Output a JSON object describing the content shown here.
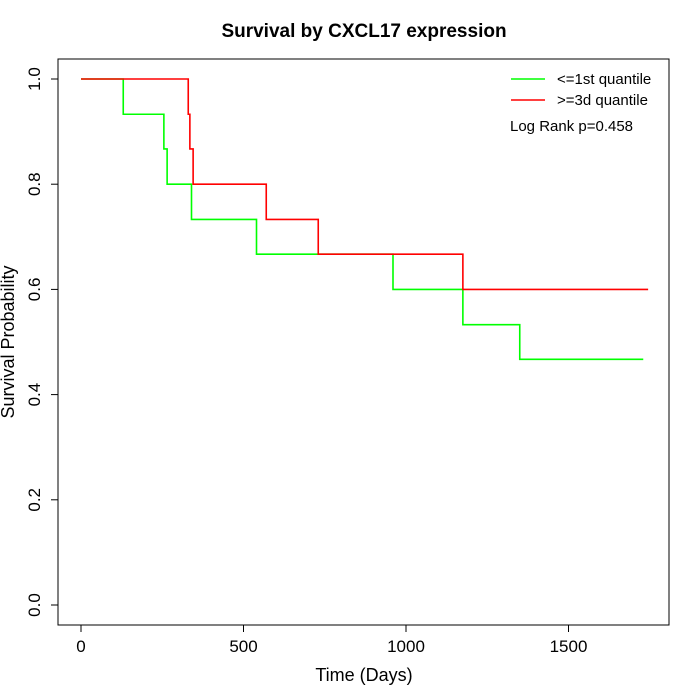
{
  "chart_data": {
    "type": "line",
    "title": "Survival by CXCL17 expression",
    "xlabel": "Time (Days)",
    "ylabel": "Survival Probability",
    "xlim": [
      0,
      1800
    ],
    "ylim": [
      0,
      1.0
    ],
    "x_ticks": [
      0,
      500,
      1000,
      1500
    ],
    "x_tick_labels": [
      "0",
      "500",
      "1000",
      "1500"
    ],
    "y_ticks": [
      0,
      0.2,
      0.4,
      0.6,
      0.8,
      1.0
    ],
    "y_tick_labels": [
      "0.0",
      "0.2",
      "0.4",
      "0.6",
      "0.8",
      "1.0"
    ],
    "grid": false,
    "legend_position": "top-right",
    "step": true,
    "series": [
      {
        "name": "<=1st quantile",
        "color": "#00ff00",
        "x": [
          0,
          130,
          255,
          265,
          340,
          540,
          960,
          1175,
          1350,
          1730
        ],
        "y": [
          1.0,
          0.933,
          0.867,
          0.8,
          0.733,
          0.667,
          0.6,
          0.533,
          0.467,
          0.467
        ]
      },
      {
        "name": ">=3d quantile",
        "color": "#ff0000",
        "x": [
          0,
          330,
          335,
          345,
          570,
          730,
          1175,
          1745
        ],
        "y": [
          1.0,
          0.933,
          0.867,
          0.8,
          0.733,
          0.667,
          0.6,
          0.6
        ]
      }
    ],
    "annotation": "Log Rank p=0.458"
  }
}
